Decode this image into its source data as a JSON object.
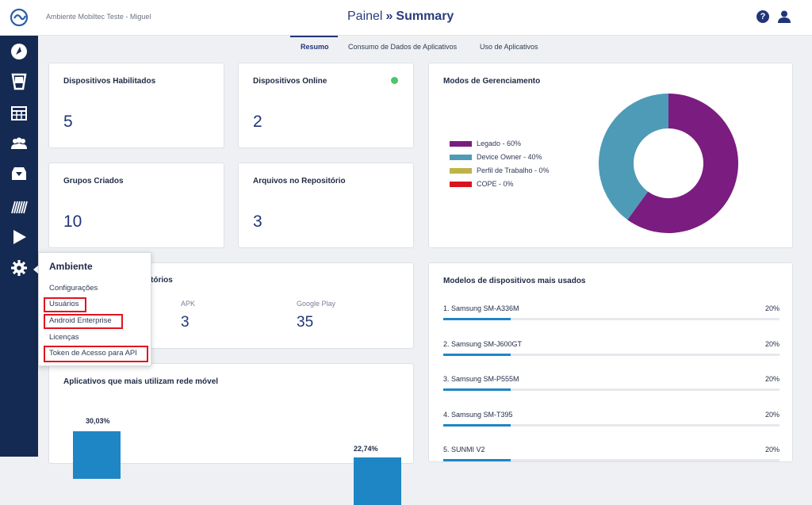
{
  "header": {
    "env_name": "Ambiente Mobiltec Teste - Miguel",
    "title_main": "Painel",
    "title_sep": "»",
    "title_sub": "Summary",
    "help_label": "?",
    "icons": [
      "logo-icon",
      "help-icon",
      "user-icon"
    ]
  },
  "sidebar": {
    "items": [
      "dashboard-icon",
      "device-icon",
      "table-icon",
      "users-icon",
      "repository-icon",
      "barcode-icon",
      "play-store-icon",
      "gear-icon"
    ]
  },
  "tabs": [
    {
      "label": "Resumo",
      "active": true
    },
    {
      "label": "Consumo de Dados de Aplicativos",
      "active": false
    },
    {
      "label": "Uso de Aplicativos",
      "active": false
    }
  ],
  "cards": {
    "devices_enabled": {
      "title": "Dispositivos Habilitados",
      "value": "5"
    },
    "devices_online": {
      "title": "Dispositivos Online",
      "value": "2",
      "status_color": "#4fc46a"
    },
    "groups": {
      "title": "Grupos Criados",
      "value": "10"
    },
    "repo_files": {
      "title": "Arquivos no Repositório",
      "value": "3"
    },
    "repositories": {
      "title_partial": "tórios",
      "apk_label": "APK",
      "apk_value": "3",
      "gplay_label": "Google Play",
      "gplay_value": "35"
    }
  },
  "management": {
    "title": "Modos de Gerenciamento",
    "chart_data": {
      "type": "pie",
      "categories": [
        "Legado - 60%",
        "Device Owner - 40%",
        "Perfil de Trabalho - 0%",
        "COPE - 0%"
      ],
      "values": [
        60,
        40,
        0,
        0
      ],
      "colors": [
        "#7b1c80",
        "#4e9bb7",
        "#bfb347",
        "#d8141e"
      ],
      "legend": "left"
    }
  },
  "models": {
    "title": "Modelos de dispositivos mais usados",
    "chart_data": {
      "type": "bar",
      "categories": [
        "1. Samsung SM-A336M",
        "2. Samsung SM-J600GT",
        "3. Samsung SM-P555M",
        "4. Samsung SM-T395",
        "5. SUNMI V2"
      ],
      "values": [
        20,
        20,
        20,
        20,
        20
      ],
      "value_labels": [
        "20%",
        "20%",
        "20%",
        "20%",
        "20%"
      ]
    }
  },
  "mobile_apps": {
    "title": "Aplicativos que mais utilizam rede móvel",
    "chart_data": {
      "type": "bar",
      "values": [
        30.03,
        22.74
      ],
      "value_labels": [
        "30,03%",
        "22,74%"
      ],
      "color": "#1f86c6"
    }
  },
  "dropdown": {
    "title": "Ambiente",
    "items": [
      {
        "label": "Configurações",
        "highlighted": false
      },
      {
        "label": "Usuários",
        "highlighted": true
      },
      {
        "label": "Android Enterprise",
        "highlighted": true
      },
      {
        "label": "Licenças",
        "highlighted": false
      },
      {
        "label": "Token de Acesso para API",
        "highlighted": true
      }
    ],
    "highlight_color": "#e0141e"
  }
}
